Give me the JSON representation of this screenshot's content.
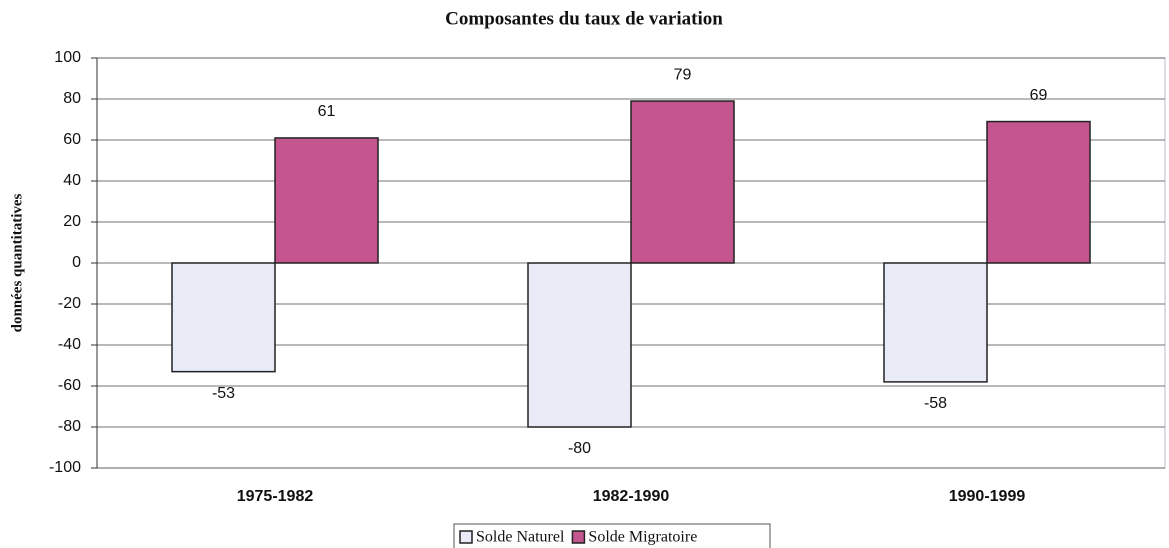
{
  "chart_data": {
    "type": "bar",
    "title": "Composantes du taux de variation",
    "ylabel": "données quantitatives",
    "categories": [
      "1975-1982",
      "1982-1990",
      "1990-1999"
    ],
    "series": [
      {
        "name": "Solde Naturel",
        "color": "#e9ebf7",
        "values": [
          -53,
          -80,
          -58
        ]
      },
      {
        "name": "Solde Migratoire",
        "color": "#c4558e",
        "values": [
          61,
          79,
          69
        ]
      }
    ],
    "ylim": [
      -100,
      100
    ],
    "yticks": [
      -100,
      -80,
      -60,
      -40,
      -20,
      0,
      20,
      40,
      60,
      80,
      100
    ],
    "grid": true,
    "legend": "bottom"
  }
}
